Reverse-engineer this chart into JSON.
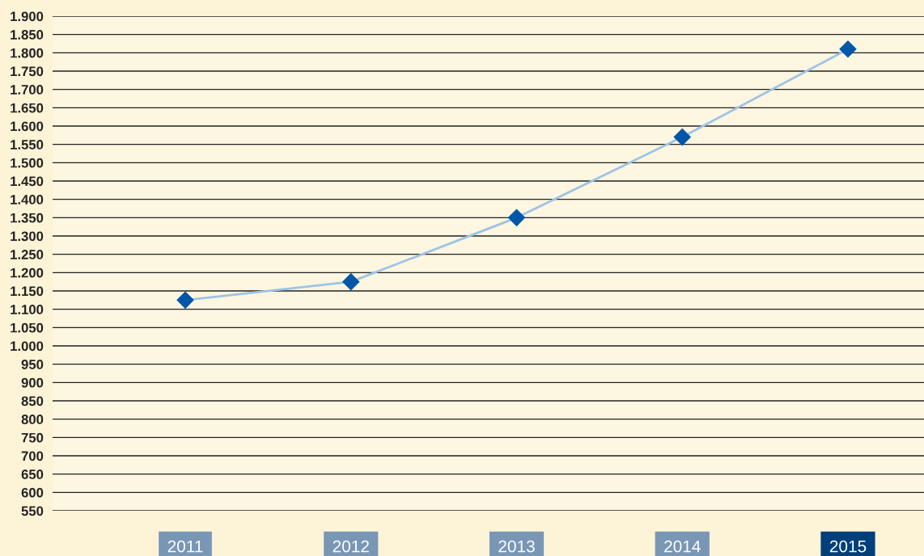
{
  "chart_data": {
    "type": "line",
    "categories": [
      "2011",
      "2012",
      "2013",
      "2014",
      "2015"
    ],
    "series": [
      {
        "color": "#9dc3e6",
        "colors": [
          "#0057a8",
          "#0057a8",
          "#0057a8",
          "#0057a8",
          "#0057a8"
        ],
        "values": [
          1125,
          1175,
          1350,
          1570,
          1810
        ]
      }
    ],
    "marker": "diamond",
    "line_style": "solid",
    "grid": "y",
    "ylim": [
      550,
      1900
    ],
    "yticks": [
      {
        "value": 550,
        "label": "550"
      },
      {
        "value": 600,
        "label": "600"
      },
      {
        "value": 650,
        "label": "650"
      },
      {
        "value": 700,
        "label": "700"
      },
      {
        "value": 750,
        "label": "750"
      },
      {
        "value": 800,
        "label": "800"
      },
      {
        "value": 850,
        "label": "850"
      },
      {
        "value": 900,
        "label": "900"
      },
      {
        "value": 950,
        "label": "950"
      },
      {
        "value": 1000,
        "label": "1.000"
      },
      {
        "value": 1050,
        "label": "1.050"
      },
      {
        "value": 1100,
        "label": "1.100"
      },
      {
        "value": 1150,
        "label": "1.150"
      },
      {
        "value": 1200,
        "label": "1.200"
      },
      {
        "value": 1250,
        "label": "1.250"
      },
      {
        "value": 1300,
        "label": "1.300"
      },
      {
        "value": 1350,
        "label": "1.350"
      },
      {
        "value": 1400,
        "label": "1.400"
      },
      {
        "value": 1450,
        "label": "1.450"
      },
      {
        "value": 1500,
        "label": "1.500"
      },
      {
        "value": 1550,
        "label": "1.550"
      },
      {
        "value": 1600,
        "label": "1.600"
      },
      {
        "value": 1650,
        "label": "1.650"
      },
      {
        "value": 1700,
        "label": "1.700"
      },
      {
        "value": 1750,
        "label": "1.750"
      },
      {
        "value": 1800,
        "label": "1.800"
      },
      {
        "value": 1850,
        "label": "1.850"
      },
      {
        "value": 1900,
        "label": "1.900"
      }
    ]
  }
}
